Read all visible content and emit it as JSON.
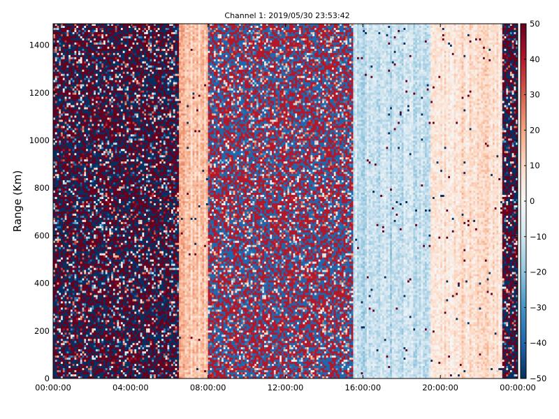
{
  "chart_data": {
    "type": "heatmap",
    "title": "Channel 1: 2019/05/30 23:53:42",
    "xlabel": "",
    "ylabel": "Range (Km)",
    "x_ticks": [
      "00:00:00",
      "04:00:00",
      "08:00:00",
      "12:00:00",
      "16:00:00",
      "20:00:00",
      "00:00:00"
    ],
    "y_ticks": [
      "0",
      "200",
      "400",
      "600",
      "800",
      "1000",
      "1200",
      "1400"
    ],
    "ylim": [
      0,
      1490
    ],
    "colorbar": {
      "ticks": [
        "50",
        "40",
        "30",
        "20",
        "10",
        "0",
        "−10",
        "−20",
        "−30",
        "−40",
        "−50"
      ],
      "range": [
        -50,
        50
      ],
      "colormap": "RdBu_r"
    },
    "grid": false,
    "regions": [
      {
        "from_hour": 0.0,
        "to_hour": 6.5,
        "pattern": "noise",
        "amplitude": 50
      },
      {
        "from_hour": 6.5,
        "to_hour": 8.0,
        "pattern": "smooth",
        "level": 14
      },
      {
        "from_hour": 8.0,
        "to_hour": 15.5,
        "pattern": "noise",
        "amplitude": 40
      },
      {
        "from_hour": 15.5,
        "to_hour": 19.5,
        "pattern": "smooth",
        "level": -12
      },
      {
        "from_hour": 19.5,
        "to_hour": 23.2,
        "pattern": "smooth",
        "level": 8
      },
      {
        "from_hour": 23.2,
        "to_hour": 24.0,
        "pattern": "noise",
        "amplitude": 50
      }
    ]
  }
}
